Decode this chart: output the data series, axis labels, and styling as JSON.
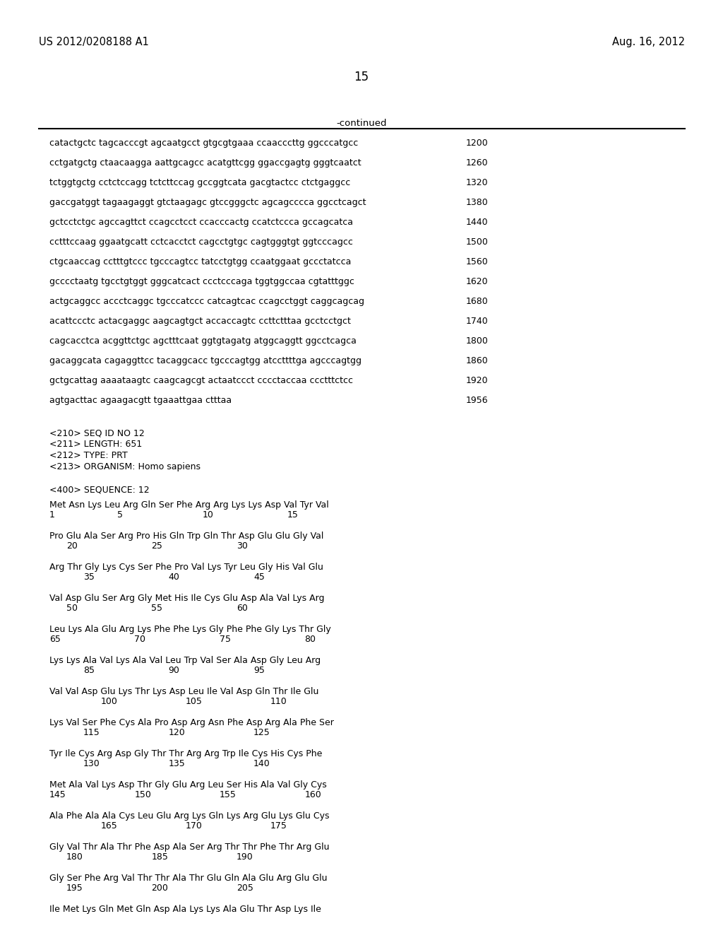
{
  "header_left": "US 2012/0208188 A1",
  "header_right": "Aug. 16, 2012",
  "page_number": "15",
  "background_color": "#ffffff",
  "seq_lines": [
    [
      "catactgctc tagcacccgt agcaatgcct gtgcgtgaaa ccaacccttg ggcccatgcc",
      "1200"
    ],
    [
      "cctgatgctg ctaacaagga aattgcagcc acatgttcgg ggaccgagtg gggtcaatct",
      "1260"
    ],
    [
      "tctggtgctg cctctccagg tctcttccag gccggtcata gacgtactcc ctctgaggcc",
      "1320"
    ],
    [
      "gaccgatggt tagaagaggt gtctaagagc gtccgggctc agcagcccca ggcctcagct",
      "1380"
    ],
    [
      "gctcctctgc agccagttct ccagcctcct ccacccactg ccatctccca gccagcatca",
      "1440"
    ],
    [
      "cctttccaag ggaatgcatt cctcacctct cagcctgtgc cagtgggtgt ggtcccagcc",
      "1500"
    ],
    [
      "ctgcaaccag cctttgtccc tgcccagtcc tatcctgtgg ccaatggaat gccctatcca",
      "1560"
    ],
    [
      "gcccctaatg tgcctgtggt gggcatcact ccctcccaga tggtggccaa cgtatttggc",
      "1620"
    ],
    [
      "actgcaggcc accctcaggc tgcccatccc catcagtcac ccagcctggt caggcagcag",
      "1680"
    ],
    [
      "acattccctc actacgaggc aagcagtgct accaccagtc ccttctttaa gcctcctgct",
      "1740"
    ],
    [
      "cagcacctca acggttctgc agctttcaat ggtgtagatg atggcaggtt ggcctcagca",
      "1800"
    ],
    [
      "gacaggcata cagaggttcc tacaggcacc tgcccagtgg atccttttga agcccagtgg",
      "1860"
    ],
    [
      "gctgcattag aaaataagtc caagcagcgt actaatccct cccctaccaa ccctttctcc",
      "1920"
    ],
    [
      "agtgacttac agaagacgtt tgaaattgaa ctttaa",
      "1956"
    ]
  ],
  "meta_lines": [
    "<210> SEQ ID NO 12",
    "<211> LENGTH: 651",
    "<212> TYPE: PRT",
    "<213> ORGANISM: Homo sapiens",
    "",
    "<400> SEQUENCE: 12"
  ],
  "prot_blocks": [
    {
      "seq": "Met Asn Lys Leu Arg Gln Ser Phe Arg Arg Lys Lys Asp Val Tyr Val",
      "nums": [
        [
          "1",
          0
        ],
        [
          "5",
          4
        ],
        [
          "10",
          9
        ],
        [
          "15",
          14
        ]
      ]
    },
    {
      "seq": "Pro Glu Ala Ser Arg Pro His Gln Trp Gln Thr Asp Glu Glu Gly Val",
      "nums": [
        [
          "20",
          1
        ],
        [
          "25",
          6
        ],
        [
          "30",
          11
        ]
      ]
    },
    {
      "seq": "Arg Thr Gly Lys Cys Ser Phe Pro Val Lys Tyr Leu Gly His Val Glu",
      "nums": [
        [
          "35",
          2
        ],
        [
          "40",
          7
        ],
        [
          "45",
          12
        ]
      ]
    },
    {
      "seq": "Val Asp Glu Ser Arg Gly Met His Ile Cys Glu Asp Ala Val Lys Arg",
      "nums": [
        [
          "50",
          1
        ],
        [
          "55",
          6
        ],
        [
          "60",
          11
        ]
      ]
    },
    {
      "seq": "Leu Lys Ala Glu Arg Lys Phe Phe Lys Gly Phe Phe Gly Lys Thr Gly",
      "nums": [
        [
          "65",
          0
        ],
        [
          "70",
          5
        ],
        [
          "75",
          10
        ],
        [
          "80",
          15
        ]
      ]
    },
    {
      "seq": "Lys Lys Ala Val Lys Ala Val Leu Trp Val Ser Ala Asp Gly Leu Arg",
      "nums": [
        [
          "85",
          2
        ],
        [
          "90",
          7
        ],
        [
          "95",
          12
        ]
      ]
    },
    {
      "seq": "Val Val Asp Glu Lys Thr Lys Asp Leu Ile Val Asp Gln Thr Ile Glu",
      "nums": [
        [
          "100",
          3
        ],
        [
          "105",
          8
        ],
        [
          "110",
          13
        ]
      ]
    },
    {
      "seq": "Lys Val Ser Phe Cys Ala Pro Asp Arg Asn Phe Asp Arg Ala Phe Ser",
      "nums": [
        [
          "115",
          2
        ],
        [
          "120",
          7
        ],
        [
          "125",
          12
        ]
      ]
    },
    {
      "seq": "Tyr Ile Cys Arg Asp Gly Thr Thr Arg Arg Trp Ile Cys His Cys Phe",
      "nums": [
        [
          "130",
          2
        ],
        [
          "135",
          7
        ],
        [
          "140",
          12
        ]
      ]
    },
    {
      "seq": "Met Ala Val Lys Asp Thr Gly Glu Arg Leu Ser His Ala Val Gly Cys",
      "nums": [
        [
          "145",
          0
        ],
        [
          "150",
          5
        ],
        [
          "155",
          10
        ],
        [
          "160",
          15
        ]
      ]
    },
    {
      "seq": "Ala Phe Ala Ala Cys Leu Glu Arg Lys Gln Lys Arg Glu Lys Glu Cys",
      "nums": [
        [
          "165",
          3
        ],
        [
          "170",
          8
        ],
        [
          "175",
          13
        ]
      ]
    },
    {
      "seq": "Gly Val Thr Ala Thr Phe Asp Ala Ser Arg Thr Thr Phe Thr Arg Glu",
      "nums": [
        [
          "180",
          1
        ],
        [
          "185",
          6
        ],
        [
          "190",
          11
        ]
      ]
    },
    {
      "seq": "Gly Ser Phe Arg Val Thr Thr Ala Thr Glu Gln Ala Glu Arg Glu Glu",
      "nums": [
        [
          "195",
          1
        ],
        [
          "200",
          6
        ],
        [
          "205",
          11
        ]
      ]
    },
    {
      "seq": "Ile Met Lys Gln Met Gln Asp Ala Lys Lys Ala Glu Thr Asp Lys Ile",
      "nums": []
    }
  ]
}
